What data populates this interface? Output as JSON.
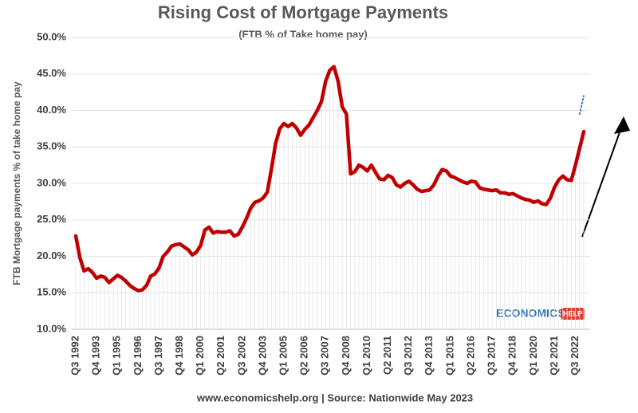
{
  "chart_data": {
    "type": "line",
    "title": "Rising Cost of Mortgage Payments",
    "subtitle": "(FTB % of Take home pay)",
    "y_label": "FTB Mortgage payments % of take home pay",
    "source": "www.economicshelp.org | Source: Nationwide May 2023",
    "categories": [
      "Q3 1992",
      null,
      null,
      null,
      null,
      "Q4 1993",
      null,
      null,
      null,
      null,
      "Q1 1995",
      null,
      null,
      null,
      null,
      "Q2 1996",
      null,
      null,
      null,
      null,
      "Q3 1997",
      null,
      null,
      null,
      null,
      "Q4 1998",
      null,
      null,
      null,
      null,
      "Q1 2000",
      null,
      null,
      null,
      null,
      "Q2 2001",
      null,
      null,
      null,
      null,
      "Q3 2002",
      null,
      null,
      null,
      null,
      "Q4 2003",
      null,
      null,
      null,
      null,
      "Q1 2005",
      null,
      null,
      null,
      null,
      "Q2 2006",
      null,
      null,
      null,
      null,
      "Q3 2007",
      null,
      null,
      null,
      null,
      "Q4 2008",
      null,
      null,
      null,
      null,
      "Q1 2010",
      null,
      null,
      null,
      null,
      "Q2 2011",
      null,
      null,
      null,
      null,
      "Q3 2012",
      null,
      null,
      null,
      null,
      "Q4 2013",
      null,
      null,
      null,
      null,
      "Q1 2015",
      null,
      null,
      null,
      null,
      "Q2 2016",
      null,
      null,
      null,
      null,
      "Q3 2017",
      null,
      null,
      null,
      null,
      "Q4 2018",
      null,
      null,
      null,
      null,
      "Q1 2020",
      null,
      null,
      null,
      null,
      "Q2 2021",
      null,
      null,
      null,
      null,
      "Q3 2022",
      null,
      null
    ],
    "series": [
      {
        "color": "#c00000",
        "dash": "solid",
        "values": [
          22.8,
          19.8,
          18.0,
          18.3,
          17.8,
          17.0,
          17.3,
          17.1,
          16.4,
          16.9,
          17.4,
          17.1,
          16.6,
          16.0,
          15.6,
          15.3,
          15.4,
          16.0,
          17.3,
          17.6,
          18.4,
          20.0,
          20.6,
          21.4,
          21.6,
          21.7,
          21.3,
          20.9,
          20.2,
          20.6,
          21.5,
          23.6,
          24.0,
          23.2,
          23.4,
          23.3,
          23.3,
          23.5,
          22.8,
          23.0,
          24.0,
          25.2,
          26.6,
          27.4,
          27.6,
          28.0,
          28.8,
          32.0,
          35.5,
          37.5,
          38.2,
          37.8,
          38.2,
          37.6,
          36.6,
          37.4,
          38.0,
          39.0,
          40.0,
          41.2,
          44.0,
          45.5,
          46.0,
          44.0,
          40.5,
          39.5,
          31.3,
          31.6,
          32.5,
          32.2,
          31.7,
          32.5,
          31.5,
          30.6,
          30.5,
          31.1,
          30.8,
          29.8,
          29.5,
          30.0,
          30.3,
          29.8,
          29.2,
          28.9,
          29.0,
          29.1,
          29.8,
          31.0,
          31.9,
          31.7,
          31.0,
          30.8,
          30.5,
          30.2,
          30.0,
          30.3,
          30.2,
          29.4,
          29.2,
          29.1,
          29.0,
          29.1,
          28.7,
          28.7,
          28.5,
          28.6,
          28.3,
          28.0,
          27.8,
          27.7,
          27.4,
          27.6,
          27.2,
          27.1,
          28.0,
          29.5,
          30.5,
          31.0,
          30.5,
          30.4,
          32.5,
          34.8,
          37.1
        ]
      },
      {
        "color": "#4472c4",
        "dash": "dotted",
        "values": [
          null,
          null,
          null,
          null,
          null,
          null,
          null,
          null,
          null,
          null,
          null,
          null,
          null,
          null,
          null,
          null,
          null,
          null,
          null,
          null,
          null,
          null,
          null,
          null,
          null,
          null,
          null,
          null,
          null,
          null,
          null,
          null,
          null,
          null,
          null,
          null,
          null,
          null,
          null,
          null,
          null,
          null,
          null,
          null,
          null,
          null,
          null,
          null,
          null,
          null,
          null,
          null,
          null,
          null,
          null,
          null,
          null,
          null,
          null,
          null,
          null,
          null,
          null,
          null,
          null,
          null,
          null,
          null,
          null,
          null,
          null,
          null,
          null,
          null,
          null,
          null,
          null,
          null,
          null,
          null,
          null,
          null,
          null,
          null,
          null,
          null,
          null,
          null,
          null,
          null,
          null,
          null,
          null,
          null,
          null,
          null,
          null,
          null,
          null,
          null,
          null,
          null,
          null,
          null,
          null,
          null,
          null,
          null,
          null,
          null,
          null,
          null,
          null,
          null,
          null,
          null,
          null,
          null,
          null,
          null,
          null,
          39.5,
          42.0
        ]
      }
    ],
    "ylim": [
      10,
      50
    ],
    "yticks": [
      {
        "value": 10,
        "label": "10.0%"
      },
      {
        "value": 15,
        "label": "15.0%"
      },
      {
        "value": 20,
        "label": "20.0%"
      },
      {
        "value": 25,
        "label": "25.0%"
      },
      {
        "value": 30,
        "label": "30.0%"
      },
      {
        "value": 35,
        "label": "35.0%"
      },
      {
        "value": 40,
        "label": "40.0%"
      },
      {
        "value": 45,
        "label": "45.0%"
      },
      {
        "value": 50,
        "label": "50.0%"
      }
    ],
    "grid": true
  },
  "logo": {
    "text": "ECONOMICS",
    "tag": "HELP"
  }
}
